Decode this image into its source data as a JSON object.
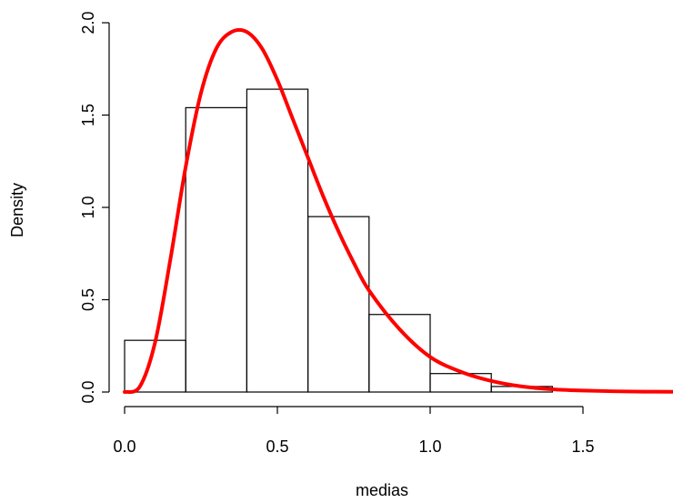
{
  "chart_data": {
    "type": "bar",
    "subtype": "histogram-with-density-curve",
    "title": "",
    "xlabel": "medias",
    "ylabel": "Density",
    "xlim": [
      0.0,
      1.8
    ],
    "ylim": [
      0.0,
      2.0
    ],
    "x_ticks": [
      "0.0",
      "0.5",
      "1.0",
      "1.5"
    ],
    "y_ticks": [
      "0.0",
      "0.5",
      "1.0",
      "1.5",
      "2.0"
    ],
    "bins": [
      {
        "x0": 0.0,
        "x1": 0.2,
        "density": 0.28
      },
      {
        "x0": 0.2,
        "x1": 0.4,
        "density": 1.54
      },
      {
        "x0": 0.4,
        "x1": 0.6,
        "density": 1.64
      },
      {
        "x0": 0.6,
        "x1": 0.8,
        "density": 0.95
      },
      {
        "x0": 0.8,
        "x1": 1.0,
        "density": 0.42
      },
      {
        "x0": 1.0,
        "x1": 1.2,
        "density": 0.1
      },
      {
        "x0": 1.2,
        "x1": 1.4,
        "density": 0.03
      }
    ],
    "curve": {
      "color": "#ff0000",
      "x": [
        0.0,
        0.05,
        0.1,
        0.15,
        0.2,
        0.25,
        0.3,
        0.35,
        0.4,
        0.45,
        0.5,
        0.55,
        0.6,
        0.65,
        0.7,
        0.75,
        0.8,
        0.9,
        1.0,
        1.1,
        1.2,
        1.3,
        1.4,
        1.5,
        1.6,
        1.7,
        1.8
      ],
      "y": [
        0.0,
        0.03,
        0.27,
        0.72,
        1.22,
        1.62,
        1.86,
        1.95,
        1.95,
        1.86,
        1.69,
        1.48,
        1.27,
        1.06,
        0.87,
        0.7,
        0.55,
        0.34,
        0.19,
        0.11,
        0.06,
        0.03,
        0.015,
        0.008,
        0.004,
        0.002,
        0.001
      ]
    },
    "grid": false,
    "legend": "none"
  }
}
